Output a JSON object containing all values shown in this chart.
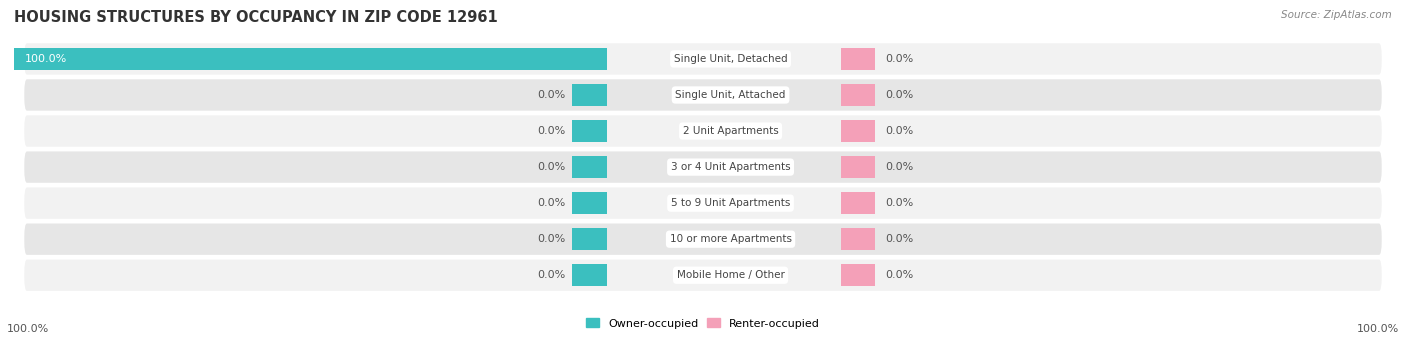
{
  "title": "HOUSING STRUCTURES BY OCCUPANCY IN ZIP CODE 12961",
  "source": "Source: ZipAtlas.com",
  "categories": [
    "Single Unit, Detached",
    "Single Unit, Attached",
    "2 Unit Apartments",
    "3 or 4 Unit Apartments",
    "5 to 9 Unit Apartments",
    "10 or more Apartments",
    "Mobile Home / Other"
  ],
  "owner_values": [
    100.0,
    0.0,
    0.0,
    0.0,
    0.0,
    0.0,
    0.0
  ],
  "renter_values": [
    0.0,
    0.0,
    0.0,
    0.0,
    0.0,
    0.0,
    0.0
  ],
  "owner_color": "#3BBFBF",
  "renter_color": "#F4A0B8",
  "row_bg_even": "#F2F2F2",
  "row_bg_odd": "#E6E6E6",
  "title_fontsize": 10.5,
  "source_fontsize": 7.5,
  "value_fontsize": 8,
  "cat_fontsize": 7.5,
  "legend_fontsize": 8,
  "axis_label_left": "100.0%",
  "axis_label_right": "100.0%",
  "max_val": 100.0,
  "stub_size": 5.0,
  "bar_height": 0.62
}
